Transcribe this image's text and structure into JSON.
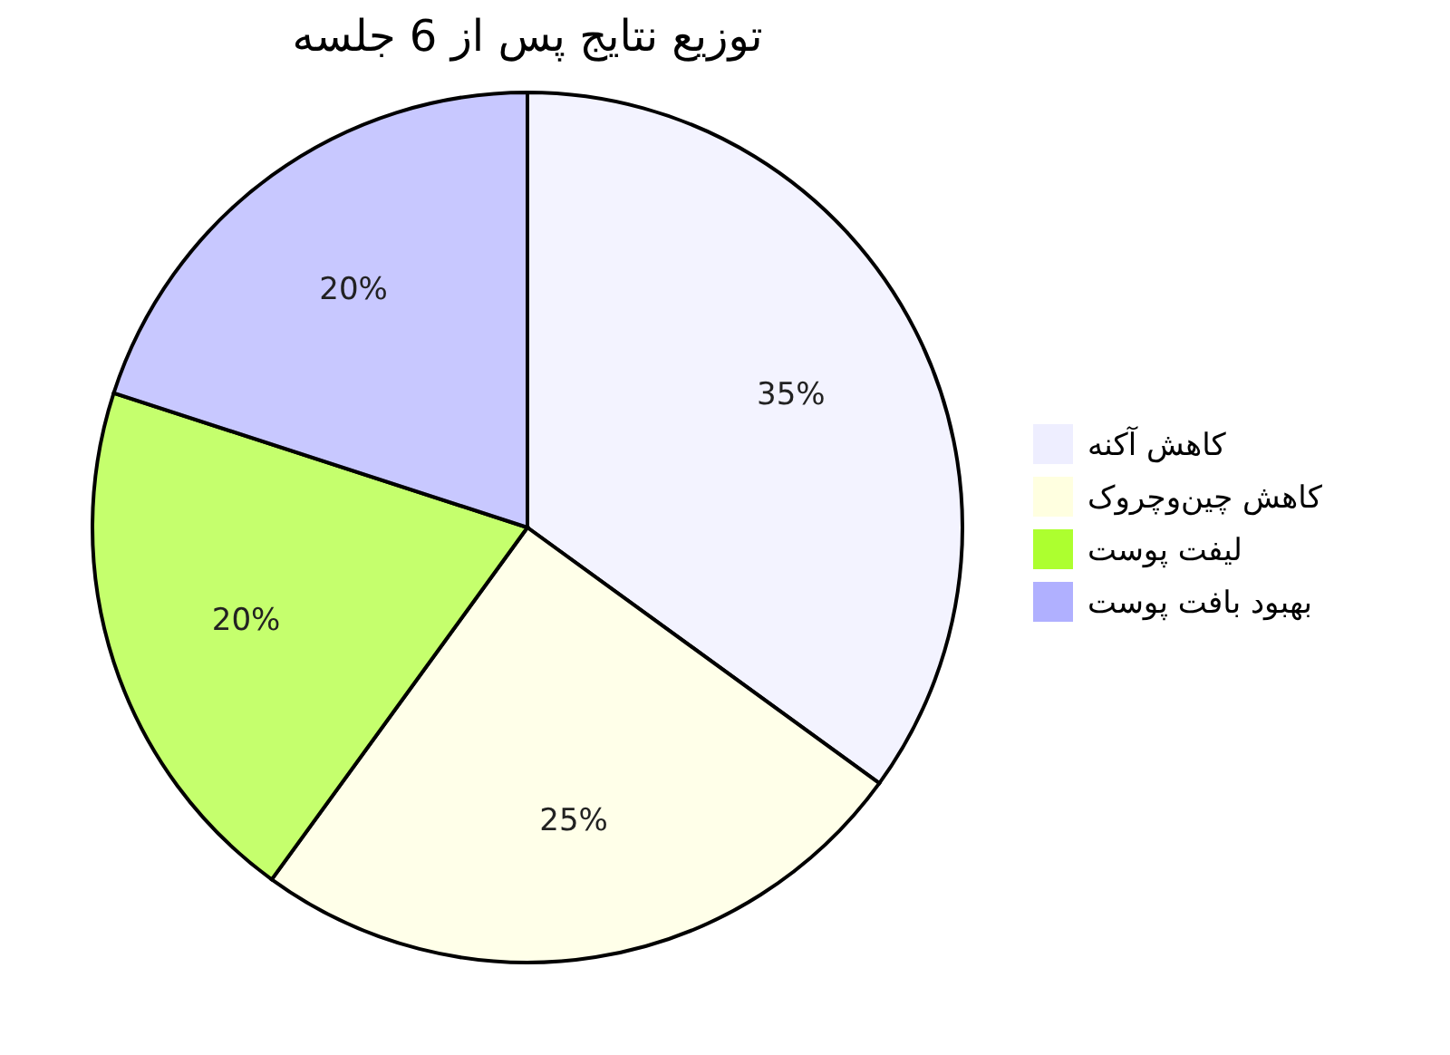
{
  "chart_data": {
    "type": "pie",
    "title": "توزیع نتایج پس از 6 جلسه",
    "categories": [
      "کاهش آکنه",
      "کاهش چین‌وچروک",
      "لیفت پوست",
      "بهبود بافت پوست"
    ],
    "values": [
      35,
      25,
      20,
      20
    ],
    "value_labels": [
      "35%",
      "25%",
      "20%",
      "20%"
    ],
    "colors": [
      "#eeeeff",
      "#ffffe0",
      "#adff2f",
      "#b0b0ff"
    ],
    "legend": "right"
  }
}
